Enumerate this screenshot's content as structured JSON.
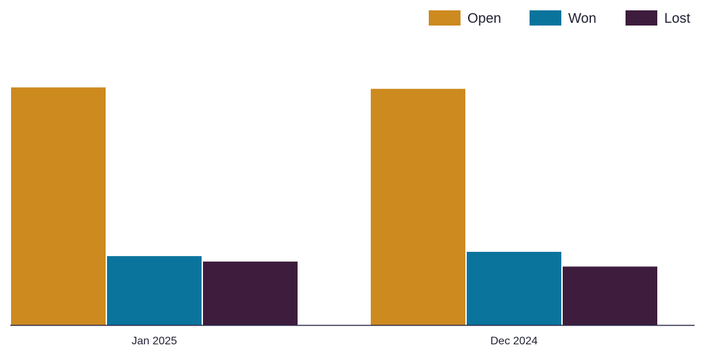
{
  "chart_data": {
    "type": "bar",
    "title": "",
    "xlabel": "",
    "ylabel": "",
    "categories": [
      "Jan 2025",
      "Dec 2024"
    ],
    "series": [
      {
        "name": "Open",
        "values": [
          100,
          99.4
        ],
        "color": "#CD8A1F"
      },
      {
        "name": "Won",
        "values": [
          29,
          30.8
        ],
        "color": "#0A749D"
      },
      {
        "name": "Lost",
        "values": [
          26.7,
          24.6
        ],
        "color": "#3E1C3D"
      }
    ],
    "ylim": [
      0,
      115
    ],
    "grid": false,
    "legend": "top-right",
    "axis_color": "#2E2A4A"
  }
}
